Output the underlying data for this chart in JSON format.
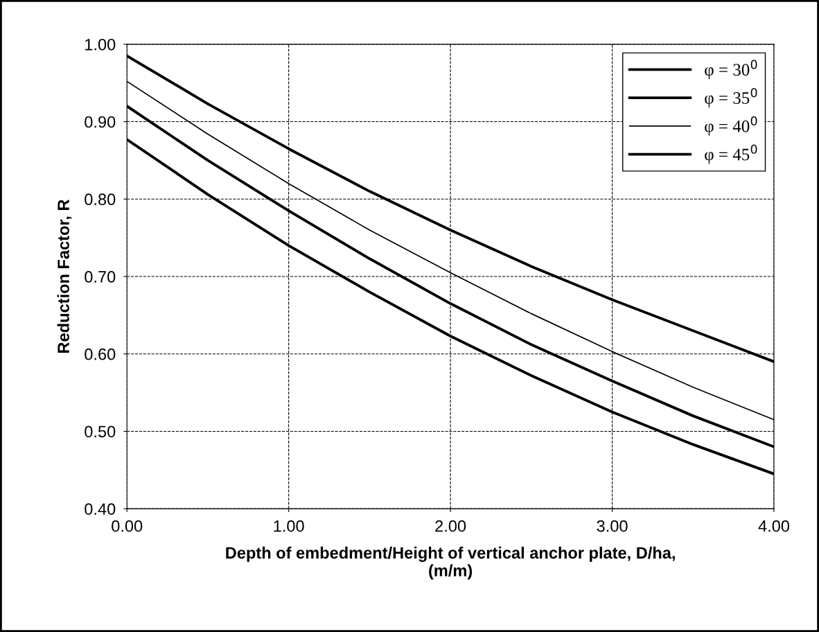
{
  "chart_data": {
    "type": "line",
    "xlabel": "Depth of embedment/Height of vertical anchor plate, D/ha,\n(m/m)",
    "ylabel": "Reduction Factor, R",
    "x": [
      0,
      0.5,
      1,
      1.5,
      2,
      2.5,
      3,
      3.5,
      4
    ],
    "series": [
      {
        "name": "φ = 30$^{0}$",
        "color": "#000000",
        "values": [
          0.877,
          0.806,
          0.74,
          0.68,
          0.623,
          0.572,
          0.525,
          0.483,
          0.445
        ]
      },
      {
        "name": "φ = 35$^{0}$",
        "color": "#000000",
        "values": [
          0.92,
          0.85,
          0.785,
          0.723,
          0.665,
          0.612,
          0.565,
          0.52,
          0.48
        ]
      },
      {
        "name": "φ = 40$^{0}$",
        "color": "#000000",
        "values": [
          0.952,
          0.884,
          0.82,
          0.76,
          0.705,
          0.652,
          0.603,
          0.557,
          0.515
        ]
      },
      {
        "name": "φ = 45$^{0}$",
        "color": "#000000",
        "values": [
          0.985,
          0.923,
          0.865,
          0.81,
          0.76,
          0.713,
          0.67,
          0.63,
          0.59
        ]
      }
    ],
    "xlim": [
      0,
      4
    ],
    "xticks": [
      {
        "value": 0,
        "label": "0.00"
      },
      {
        "value": 1,
        "label": "1.00"
      },
      {
        "value": 2,
        "label": "2.00"
      },
      {
        "value": 3,
        "label": "3.00"
      },
      {
        "value": 4,
        "label": "4.00"
      }
    ],
    "ylim": [
      0.4,
      1.0
    ],
    "yticks": [
      {
        "value": 0.4,
        "label": "0.40"
      },
      {
        "value": 0.5,
        "label": "0.50"
      },
      {
        "value": 0.6,
        "label": "0.60"
      },
      {
        "value": 0.7,
        "label": "0.70"
      },
      {
        "value": 0.8,
        "label": "0.80"
      },
      {
        "value": 0.9,
        "label": "0.90"
      },
      {
        "value": 1.0,
        "label": "1.00"
      }
    ],
    "grid": true,
    "legend": "top right",
    "line_style": "solid",
    "marker": "none"
  }
}
